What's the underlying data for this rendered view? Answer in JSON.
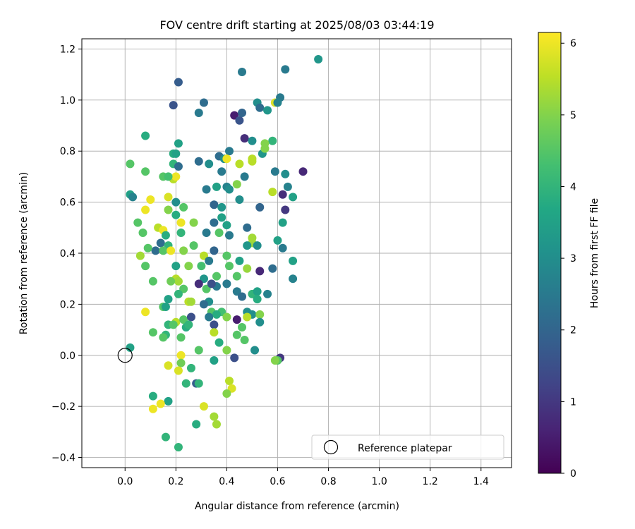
{
  "chart_data": {
    "type": "scatter",
    "title": "FOV centre drift starting at 2025/08/03 03:44:19",
    "xlabel": "Angular distance from reference (arcmin)",
    "ylabel": "Rotation from reference (arcmin)",
    "xlim": [
      -0.17,
      1.52
    ],
    "ylim": [
      -0.44,
      1.24
    ],
    "xticks": [
      0.0,
      0.2,
      0.4,
      0.6,
      0.8,
      1.0,
      1.2,
      1.4
    ],
    "xtick_labels": [
      "0.0",
      "0.2",
      "0.4",
      "0.6",
      "0.8",
      "1.0",
      "1.2",
      "1.4"
    ],
    "yticks": [
      -0.4,
      -0.2,
      0.0,
      0.2,
      0.4,
      0.6,
      0.8,
      1.0,
      1.2
    ],
    "ytick_labels": [
      "−0.4",
      "−0.2",
      "0.0",
      "0.2",
      "0.4",
      "0.6",
      "0.8",
      "1.0",
      "1.2"
    ],
    "grid": true,
    "colormap": "viridis",
    "colorbar": {
      "label": "Hours from first FF file",
      "range": [
        0,
        6.15
      ],
      "ticks": [
        0,
        1,
        2,
        3,
        4,
        5,
        6
      ],
      "tick_labels": [
        "0",
        "1",
        "2",
        "3",
        "4",
        "5",
        "6"
      ]
    },
    "legend": {
      "position": "lower-right",
      "entries": [
        "Reference platepar"
      ]
    },
    "reference": {
      "x": 0.0,
      "y": 0.0,
      "label": "Reference platepar"
    },
    "points": [
      [
        0.76,
        1.16,
        3.2
      ],
      [
        0.63,
        1.12,
        2.5
      ],
      [
        0.46,
        1.11,
        2.5
      ],
      [
        0.21,
        1.07,
        1.8
      ],
      [
        0.31,
        0.99,
        2.2
      ],
      [
        0.19,
        0.98,
        1.6
      ],
      [
        0.61,
        1.01,
        2.5
      ],
      [
        0.52,
        0.99,
        3.0
      ],
      [
        0.53,
        0.97,
        2.2
      ],
      [
        0.56,
        0.96,
        3.2
      ],
      [
        0.59,
        0.99,
        5.8
      ],
      [
        0.6,
        0.99,
        2.7
      ],
      [
        0.29,
        0.95,
        2.5
      ],
      [
        0.43,
        0.94,
        0.5
      ],
      [
        0.45,
        0.92,
        1.6
      ],
      [
        0.46,
        0.95,
        2.0
      ],
      [
        0.08,
        0.86,
        3.8
      ],
      [
        0.47,
        0.85,
        0.8
      ],
      [
        0.5,
        0.84,
        3.0
      ],
      [
        0.58,
        0.84,
        4.0
      ],
      [
        0.21,
        0.83,
        3.5
      ],
      [
        0.55,
        0.83,
        5.0
      ],
      [
        0.54,
        0.79,
        3.2
      ],
      [
        0.55,
        0.81,
        5.0
      ],
      [
        0.19,
        0.79,
        3.8
      ],
      [
        0.2,
        0.79,
        3.5
      ],
      [
        0.41,
        0.8,
        2.5
      ],
      [
        0.37,
        0.78,
        2.2
      ],
      [
        0.39,
        0.77,
        3.0
      ],
      [
        0.5,
        0.77,
        5.5
      ],
      [
        0.4,
        0.77,
        6.0
      ],
      [
        0.02,
        0.75,
        4.5
      ],
      [
        0.29,
        0.76,
        2.2
      ],
      [
        0.33,
        0.75,
        3.0
      ],
      [
        0.45,
        0.75,
        5.5
      ],
      [
        0.5,
        0.76,
        5.5
      ],
      [
        0.19,
        0.75,
        4.0
      ],
      [
        0.21,
        0.74,
        2.2
      ],
      [
        0.08,
        0.72,
        4.5
      ],
      [
        0.38,
        0.72,
        2.5
      ],
      [
        0.47,
        0.7,
        2.5
      ],
      [
        0.59,
        0.72,
        2.5
      ],
      [
        0.63,
        0.71,
        3.0
      ],
      [
        0.7,
        0.72,
        0.7
      ],
      [
        0.15,
        0.7,
        4.5
      ],
      [
        0.19,
        0.69,
        5.5
      ],
      [
        0.2,
        0.7,
        6.0
      ],
      [
        0.17,
        0.7,
        4.3
      ],
      [
        0.36,
        0.66,
        3.5
      ],
      [
        0.4,
        0.66,
        2.7
      ],
      [
        0.44,
        0.67,
        5.0
      ],
      [
        0.41,
        0.65,
        3.0
      ],
      [
        0.32,
        0.65,
        2.5
      ],
      [
        0.64,
        0.66,
        2.7
      ],
      [
        0.02,
        0.63,
        3.5
      ],
      [
        0.03,
        0.62,
        2.7
      ],
      [
        0.17,
        0.62,
        5.8
      ],
      [
        0.2,
        0.6,
        3.0
      ],
      [
        0.45,
        0.61,
        3.0
      ],
      [
        0.62,
        0.63,
        0.8
      ],
      [
        0.66,
        0.62,
        3.5
      ],
      [
        0.58,
        0.64,
        5.5
      ],
      [
        0.1,
        0.61,
        6.0
      ],
      [
        0.17,
        0.57,
        5.0
      ],
      [
        0.23,
        0.58,
        4.5
      ],
      [
        0.35,
        0.59,
        2.0
      ],
      [
        0.38,
        0.58,
        3.2
      ],
      [
        0.53,
        0.58,
        2.0
      ],
      [
        0.63,
        0.57,
        1.0
      ],
      [
        0.08,
        0.57,
        6.0
      ],
      [
        0.2,
        0.55,
        3.8
      ],
      [
        0.38,
        0.54,
        3.5
      ],
      [
        0.05,
        0.52,
        4.5
      ],
      [
        0.27,
        0.52,
        5.0
      ],
      [
        0.35,
        0.52,
        2.2
      ],
      [
        0.4,
        0.51,
        3.5
      ],
      [
        0.48,
        0.5,
        2.2
      ],
      [
        0.62,
        0.52,
        3.5
      ],
      [
        0.22,
        0.52,
        6.0
      ],
      [
        0.13,
        0.5,
        5.5
      ],
      [
        0.15,
        0.49,
        6.0
      ],
      [
        0.07,
        0.48,
        4.5
      ],
      [
        0.16,
        0.47,
        3.8
      ],
      [
        0.22,
        0.48,
        4.0
      ],
      [
        0.32,
        0.48,
        2.5
      ],
      [
        0.37,
        0.48,
        4.5
      ],
      [
        0.41,
        0.47,
        2.5
      ],
      [
        0.5,
        0.44,
        5.2
      ],
      [
        0.5,
        0.46,
        5.3
      ],
      [
        0.6,
        0.45,
        3.5
      ],
      [
        0.14,
        0.44,
        2.2
      ],
      [
        0.17,
        0.43,
        4.0
      ],
      [
        0.12,
        0.41,
        2.2
      ],
      [
        0.15,
        0.41,
        4.5
      ],
      [
        0.09,
        0.42,
        4.5
      ],
      [
        0.23,
        0.41,
        5.0
      ],
      [
        0.27,
        0.43,
        4.5
      ],
      [
        0.35,
        0.41,
        2.0
      ],
      [
        0.48,
        0.43,
        3.2
      ],
      [
        0.52,
        0.43,
        3.0
      ],
      [
        0.62,
        0.42,
        2.5
      ],
      [
        0.18,
        0.41,
        6.0
      ],
      [
        0.06,
        0.39,
        5.3
      ],
      [
        0.31,
        0.39,
        5.5
      ],
      [
        0.4,
        0.39,
        4.5
      ],
      [
        0.45,
        0.37,
        3.5
      ],
      [
        0.48,
        0.34,
        5.2
      ],
      [
        0.3,
        0.35,
        4.3
      ],
      [
        0.33,
        0.37,
        2.5
      ],
      [
        0.41,
        0.35,
        4.5
      ],
      [
        0.2,
        0.35,
        3.5
      ],
      [
        0.25,
        0.35,
        5.0
      ],
      [
        0.08,
        0.35,
        4.5
      ],
      [
        0.58,
        0.34,
        2.2
      ],
      [
        0.53,
        0.33,
        0.7
      ],
      [
        0.66,
        0.37,
        3.5
      ],
      [
        0.66,
        0.3,
        2.7
      ],
      [
        0.36,
        0.31,
        4.5
      ],
      [
        0.44,
        0.31,
        4.5
      ],
      [
        0.31,
        0.3,
        3.2
      ],
      [
        0.2,
        0.3,
        5.5
      ],
      [
        0.21,
        0.29,
        5.3
      ],
      [
        0.29,
        0.28,
        0.8
      ],
      [
        0.32,
        0.26,
        4.5
      ],
      [
        0.36,
        0.27,
        2.5
      ],
      [
        0.34,
        0.28,
        1.5
      ],
      [
        0.4,
        0.28,
        2.5
      ],
      [
        0.11,
        0.29,
        4.5
      ],
      [
        0.18,
        0.29,
        4.8
      ],
      [
        0.23,
        0.26,
        4.5
      ],
      [
        0.44,
        0.25,
        2.5
      ],
      [
        0.5,
        0.24,
        4.0
      ],
      [
        0.52,
        0.25,
        3.5
      ],
      [
        0.56,
        0.24,
        2.7
      ],
      [
        0.17,
        0.22,
        3.5
      ],
      [
        0.21,
        0.24,
        4.0
      ],
      [
        0.46,
        0.23,
        2.2
      ],
      [
        0.52,
        0.22,
        3.8
      ],
      [
        0.25,
        0.21,
        5.5
      ],
      [
        0.26,
        0.21,
        5.3
      ],
      [
        0.33,
        0.21,
        3.0
      ],
      [
        0.31,
        0.2,
        2.2
      ],
      [
        0.15,
        0.19,
        4.5
      ],
      [
        0.16,
        0.19,
        3.5
      ],
      [
        0.08,
        0.17,
        6.0
      ],
      [
        0.34,
        0.17,
        4.5
      ],
      [
        0.38,
        0.17,
        4.3
      ],
      [
        0.4,
        0.15,
        5.0
      ],
      [
        0.36,
        0.16,
        3.8
      ],
      [
        0.48,
        0.17,
        3.0
      ],
      [
        0.5,
        0.16,
        3.0
      ],
      [
        0.53,
        0.16,
        5.0
      ],
      [
        0.44,
        0.14,
        0.5
      ],
      [
        0.48,
        0.15,
        5.5
      ],
      [
        0.2,
        0.13,
        5.5
      ],
      [
        0.23,
        0.14,
        4.5
      ],
      [
        0.26,
        0.15,
        1.5
      ],
      [
        0.33,
        0.15,
        2.5
      ],
      [
        0.53,
        0.13,
        3.0
      ],
      [
        0.17,
        0.12,
        4.0
      ],
      [
        0.19,
        0.12,
        4.5
      ],
      [
        0.24,
        0.11,
        3.8
      ],
      [
        0.25,
        0.12,
        4.0
      ],
      [
        0.35,
        0.12,
        1.5
      ],
      [
        0.35,
        0.09,
        5.5
      ],
      [
        0.46,
        0.11,
        4.5
      ],
      [
        0.44,
        0.08,
        4.5
      ],
      [
        0.11,
        0.09,
        4.5
      ],
      [
        0.22,
        0.07,
        4.5
      ],
      [
        0.16,
        0.08,
        4.0
      ],
      [
        0.15,
        0.07,
        4.5
      ],
      [
        0.47,
        0.06,
        4.5
      ],
      [
        0.37,
        0.05,
        3.8
      ],
      [
        0.4,
        0.02,
        5.0
      ],
      [
        0.51,
        0.02,
        3.0
      ],
      [
        0.29,
        0.02,
        4.5
      ],
      [
        0.02,
        0.03,
        3.5
      ],
      [
        0.43,
        -0.01,
        1.5
      ],
      [
        0.61,
        -0.01,
        1.0
      ],
      [
        0.6,
        -0.02,
        4.5
      ],
      [
        0.59,
        -0.02,
        5.0
      ],
      [
        0.35,
        -0.02,
        3.5
      ],
      [
        0.22,
        0.0,
        6.0
      ],
      [
        0.22,
        -0.03,
        4.8
      ],
      [
        0.17,
        -0.04,
        5.8
      ],
      [
        0.21,
        -0.06,
        5.8
      ],
      [
        0.26,
        -0.05,
        4.0
      ],
      [
        0.24,
        -0.11,
        4.0
      ],
      [
        0.28,
        -0.11,
        1.8
      ],
      [
        0.29,
        -0.11,
        4.0
      ],
      [
        0.41,
        -0.1,
        5.5
      ],
      [
        0.42,
        -0.13,
        5.8
      ],
      [
        0.4,
        -0.15,
        5.0
      ],
      [
        0.11,
        -0.16,
        3.8
      ],
      [
        0.17,
        -0.18,
        3.5
      ],
      [
        0.14,
        -0.19,
        6.0
      ],
      [
        0.11,
        -0.21,
        6.0
      ],
      [
        0.31,
        -0.2,
        5.8
      ],
      [
        0.35,
        -0.24,
        5.3
      ],
      [
        0.36,
        -0.27,
        5.3
      ],
      [
        0.28,
        -0.27,
        3.8
      ],
      [
        0.16,
        -0.32,
        4.0
      ],
      [
        0.21,
        -0.36,
        4.0
      ]
    ]
  }
}
